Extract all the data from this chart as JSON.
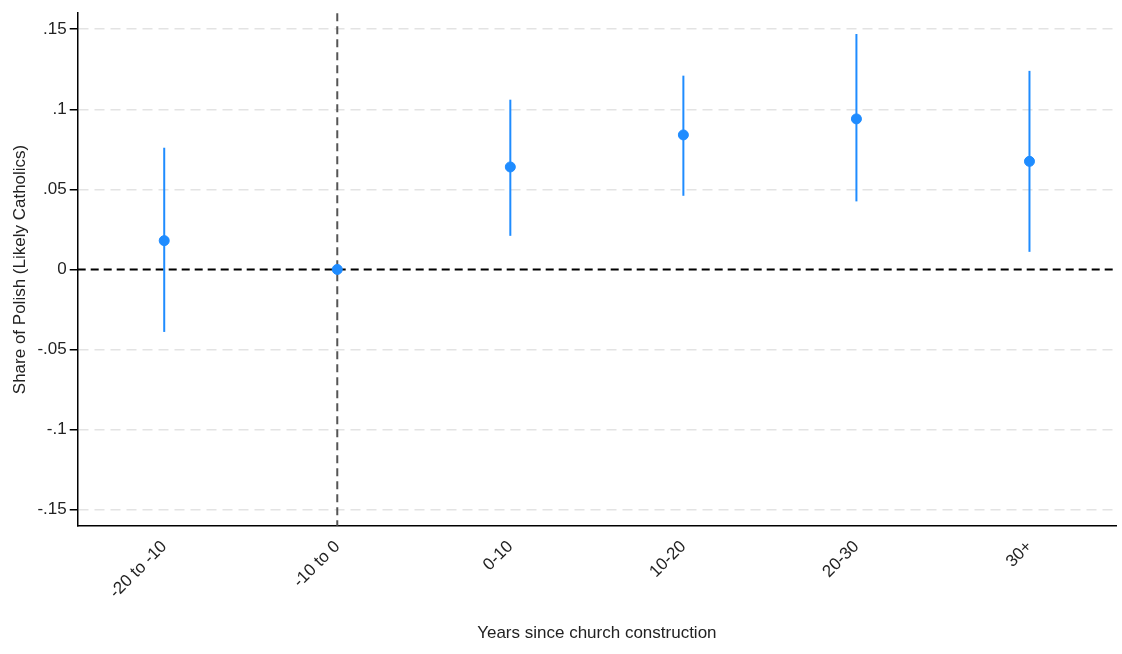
{
  "chart_data": {
    "type": "scatter",
    "xlabel": "Years since church construction",
    "ylabel": "Share of Polish (Likely Catholics)",
    "categories": [
      "-20 to -10",
      "-10 to 0",
      "0-10",
      "10-20",
      "20-30",
      "30+"
    ],
    "series": [
      {
        "color": "#1f8cff",
        "values": [
          0.018,
          0,
          0.064,
          0.084,
          0.094,
          0.0675
        ],
        "errors": [
          [
            -0.039,
            0.076
          ],
          null,
          [
            0.021,
            0.106
          ],
          [
            0.046,
            0.121
          ],
          [
            0.0425,
            0.147
          ],
          [
            0.011,
            0.124
          ]
        ]
      }
    ],
    "ylim": [
      -0.16,
      0.16
    ],
    "yticks": [
      {
        "value": -0.15,
        "label": "-.15"
      },
      {
        "value": -0.1,
        "label": "-.1"
      },
      {
        "value": -0.05,
        "label": "-.05"
      },
      0,
      {
        "value": 0.05,
        "label": ".05"
      },
      {
        "value": 0.1,
        "label": ".1"
      },
      {
        "value": 0.15,
        "label": ".15"
      }
    ],
    "ref_lines": [
      {
        "axis": "y",
        "value": 0,
        "color": "#000000",
        "line_style": "dashed"
      },
      {
        "axis": "x",
        "value": "-10 to 0",
        "color": "#555555",
        "line_style": "dashed"
      }
    ],
    "grid": "y",
    "legend": false,
    "marker": "circle"
  }
}
